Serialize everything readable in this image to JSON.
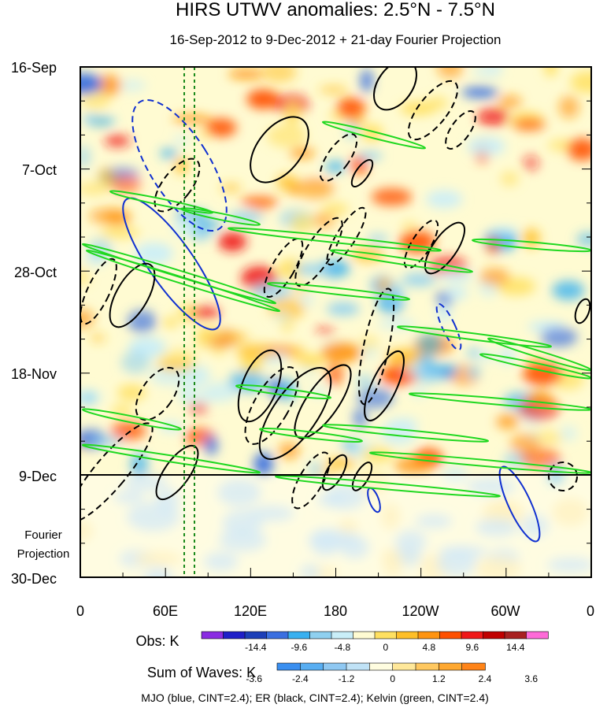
{
  "chart_data": {
    "type": "heatmap",
    "title": "HIRS UTWV anomalies: 2.5°N - 7.5°N",
    "subtitle": "16-Sep-2012 to 9-Dec-2012 + 21-day Fourier Projection",
    "x_ticks": [
      "0",
      "60E",
      "120E",
      "180",
      "120W",
      "60W",
      "0"
    ],
    "x_range": [
      0,
      360
    ],
    "y_ticks": [
      "16-Sep",
      "7-Oct",
      "28-Oct",
      "18-Nov",
      "9-Dec",
      "30-Dec"
    ],
    "y_range_days": [
      0,
      105
    ],
    "observation_end_day": 84,
    "forecast_label_lines": [
      "Fourier",
      "Projection"
    ],
    "reference_longitudes": [
      72,
      80
    ],
    "obs_colorbar": {
      "label": "Obs: K",
      "labels": [
        "-14.4",
        "-9.6",
        "-4.8",
        "0",
        "4.8",
        "9.6",
        "14.4"
      ],
      "colors": [
        "#8a2be2",
        "#1f1fc8",
        "#1c3fb8",
        "#3a6fe0",
        "#38b0f0",
        "#8fd0f0",
        "#c9eef8",
        "#fffbd2",
        "#ffe060",
        "#ffbf28",
        "#ff9410",
        "#ff5000",
        "#f01818",
        "#c00000",
        "#a82020",
        "#ff6ad8"
      ]
    },
    "waves_colorbar": {
      "label": "Sum of Waves: K",
      "labels": [
        "-3.6",
        "-2.4",
        "-1.2",
        "0",
        "1.2",
        "2.4",
        "3.6"
      ],
      "colors": [
        "#3a8ff0",
        "#58aef2",
        "#8fc8f2",
        "#c0e2f6",
        "#fffde0",
        "#ffe89a",
        "#ffc860",
        "#ffa830",
        "#ff8418"
      ]
    },
    "series": [
      {
        "name": "MJO",
        "color": "#1030d0",
        "cint": 2.4
      },
      {
        "name": "ER",
        "color": "#000000",
        "cint": 2.4
      },
      {
        "name": "Kelvin",
        "color": "#20d820",
        "cint": 2.4
      }
    ],
    "contour_legend": "MJO (blue, CINT=2.4); ER (black, CINT=2.4); Kelvin (green, CINT=2.4)"
  }
}
